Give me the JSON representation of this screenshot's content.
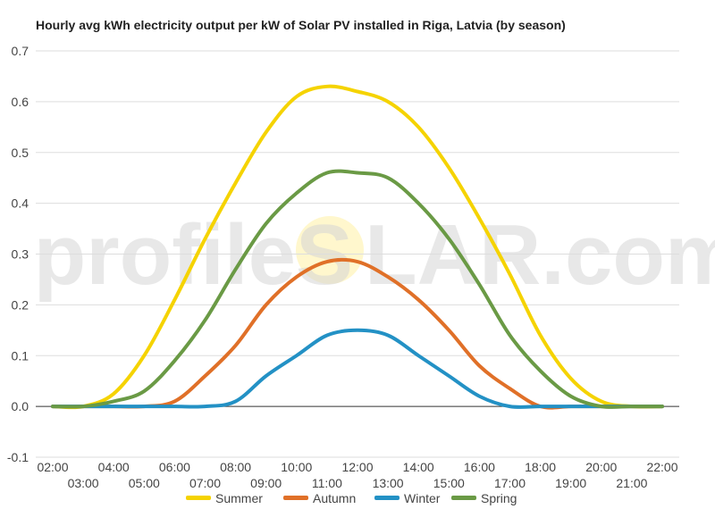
{
  "title": "Hourly avg kWh electricity output per kW of Solar PV installed in Riga, Latvia (by season)",
  "watermark": {
    "left": "profileS",
    "right": "LAR.com"
  },
  "chart_data": {
    "type": "line",
    "title": "Hourly avg kWh electricity output per kW of Solar PV installed in Riga, Latvia (by season)",
    "xlabel": "",
    "ylabel": "",
    "ylim": [
      -0.1,
      0.7
    ],
    "yticks": [
      "-0.1",
      "0.0",
      "0.1",
      "0.2",
      "0.3",
      "0.4",
      "0.5",
      "0.6",
      "0.7"
    ],
    "grid": true,
    "legend": "bottom",
    "x": [
      "02:00",
      "03:00",
      "04:00",
      "05:00",
      "06:00",
      "07:00",
      "08:00",
      "09:00",
      "10:00",
      "11:00",
      "12:00",
      "13:00",
      "14:00",
      "15:00",
      "16:00",
      "17:00",
      "18:00",
      "19:00",
      "20:00",
      "21:00",
      "22:00"
    ],
    "series": [
      {
        "name": "Summer",
        "color": "#f5d300",
        "values": [
          0.0,
          0.0,
          0.025,
          0.1,
          0.21,
          0.33,
          0.44,
          0.54,
          0.61,
          0.63,
          0.62,
          0.6,
          0.55,
          0.47,
          0.37,
          0.26,
          0.14,
          0.055,
          0.01,
          0.0,
          0.0
        ]
      },
      {
        "name": "Autumn",
        "color": "#e07028",
        "values": [
          0.0,
          0.0,
          0.0,
          0.0,
          0.01,
          0.06,
          0.12,
          0.2,
          0.255,
          0.285,
          0.285,
          0.255,
          0.21,
          0.15,
          0.08,
          0.035,
          0.0,
          0.0,
          0.0,
          0.0,
          0.0
        ]
      },
      {
        "name": "Winter",
        "color": "#2391c5",
        "values": [
          0.0,
          0.0,
          0.0,
          0.0,
          0.0,
          0.0,
          0.01,
          0.06,
          0.1,
          0.14,
          0.15,
          0.14,
          0.1,
          0.06,
          0.02,
          0.0,
          0.0,
          0.0,
          0.0,
          0.0,
          0.0
        ]
      },
      {
        "name": "Spring",
        "color": "#6a9a45",
        "values": [
          0.0,
          0.0,
          0.01,
          0.03,
          0.09,
          0.17,
          0.27,
          0.36,
          0.42,
          0.46,
          0.46,
          0.45,
          0.4,
          0.33,
          0.24,
          0.14,
          0.07,
          0.02,
          0.0,
          0.0,
          0.0
        ]
      }
    ]
  }
}
